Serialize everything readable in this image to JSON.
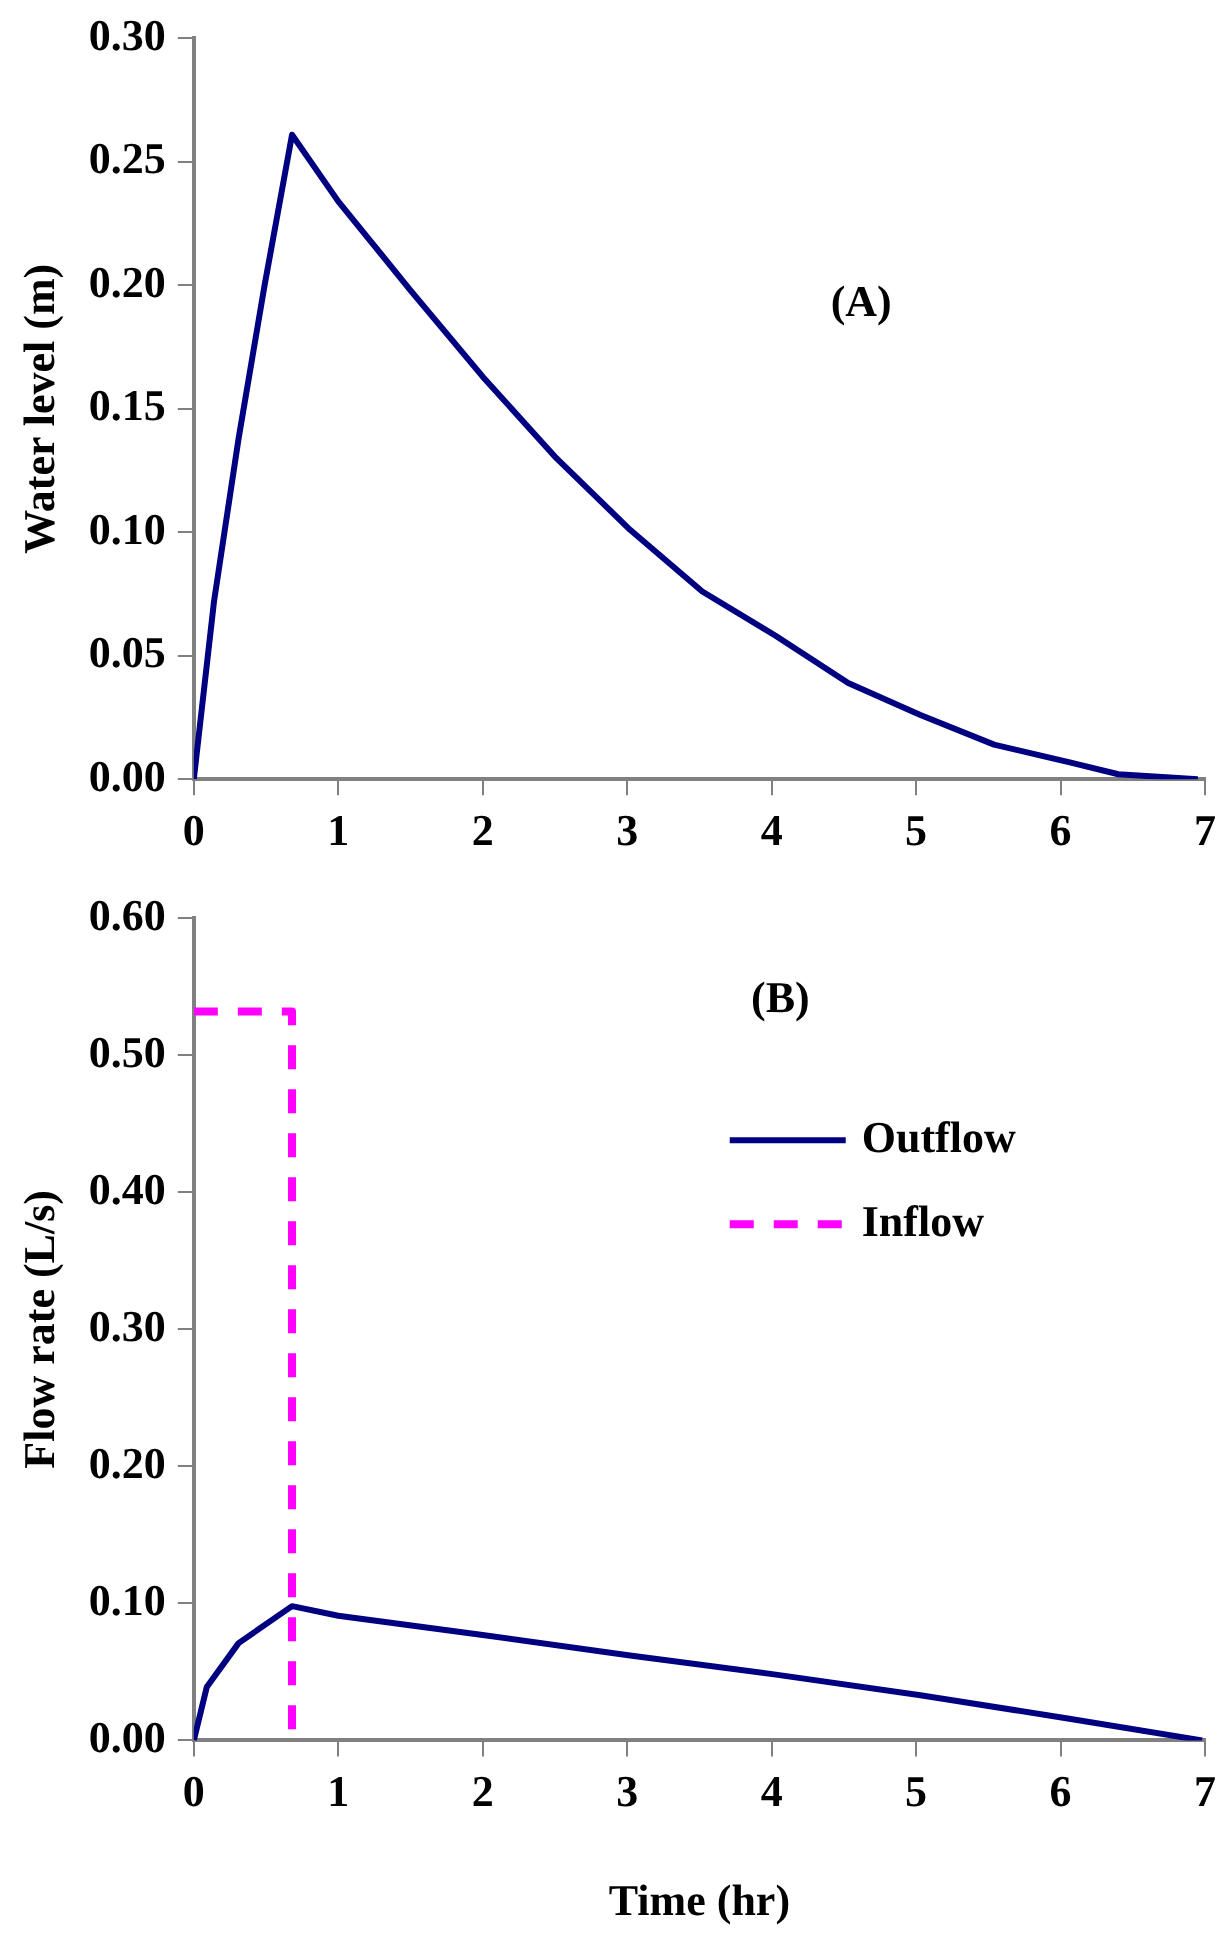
{
  "chart_data": [
    {
      "type": "line",
      "ylabel": "Water level (m)",
      "annotations": [
        "(A)"
      ],
      "series": [
        {
          "color": "#000080",
          "x": [
            0,
            0.14,
            0.31,
            0.49,
            0.68,
            1.0,
            1.5,
            2.0,
            2.51,
            3.02,
            3.52,
            4.03,
            4.53,
            5.03,
            5.54,
            6.05,
            6.4,
            6.95
          ],
          "values": [
            0,
            0.072,
            0.138,
            0.2,
            0.261,
            0.234,
            0.198,
            0.163,
            0.13,
            0.101,
            0.076,
            0.058,
            0.039,
            0.026,
            0.014,
            0.007,
            0.002,
            0
          ]
        }
      ],
      "xlim": [
        0,
        7
      ],
      "xticks": [
        0,
        1,
        2,
        3,
        4,
        5,
        6,
        7
      ],
      "ylim": [
        0,
        0.3
      ],
      "yticks": [
        {
          "value": 0,
          "label": "0.00"
        },
        {
          "value": 0.05,
          "label": "0.05"
        },
        {
          "value": 0.1,
          "label": "0.10"
        },
        {
          "value": 0.15,
          "label": "0.15"
        },
        {
          "value": 0.2,
          "label": "0.20"
        },
        {
          "value": 0.25,
          "label": "0.25"
        },
        {
          "value": 0.3,
          "label": "0.30"
        }
      ],
      "grid": false,
      "marker": "none",
      "line_style": "solid"
    },
    {
      "type": "line",
      "xlabel": "Time (hr)",
      "ylabel": "Flow rate (L/s)",
      "annotations": [
        "(B)"
      ],
      "series": [
        {
          "name": "Outflow",
          "color": "#000080",
          "line_style": "solid",
          "x": [
            0,
            0.09,
            0.31,
            0.68,
            1.0,
            2.0,
            3.02,
            4.03,
            5.03,
            6.05,
            6.98
          ],
          "values": [
            0,
            0.039,
            0.071,
            0.098,
            0.091,
            0.077,
            0.062,
            0.048,
            0.033,
            0.016,
            0
          ]
        },
        {
          "name": "Inflow",
          "color": "#ff00ff",
          "line_style": "dashed",
          "x": [
            0,
            0.68,
            0.68
          ],
          "values": [
            0.532,
            0.532,
            0
          ]
        }
      ],
      "xlim": [
        0,
        7
      ],
      "xticks": [
        0,
        1,
        2,
        3,
        4,
        5,
        6,
        7
      ],
      "ylim": [
        0,
        0.6
      ],
      "yticks": [
        {
          "value": 0,
          "label": "0.00"
        },
        {
          "value": 0.1,
          "label": "0.10"
        },
        {
          "value": 0.2,
          "label": "0.20"
        },
        {
          "value": 0.3,
          "label": "0.30"
        },
        {
          "value": 0.4,
          "label": "0.40"
        },
        {
          "value": 0.5,
          "label": "0.50"
        },
        {
          "value": 0.6,
          "label": "0.60"
        }
      ],
      "grid": false,
      "legend": "top right",
      "marker": "none"
    }
  ]
}
